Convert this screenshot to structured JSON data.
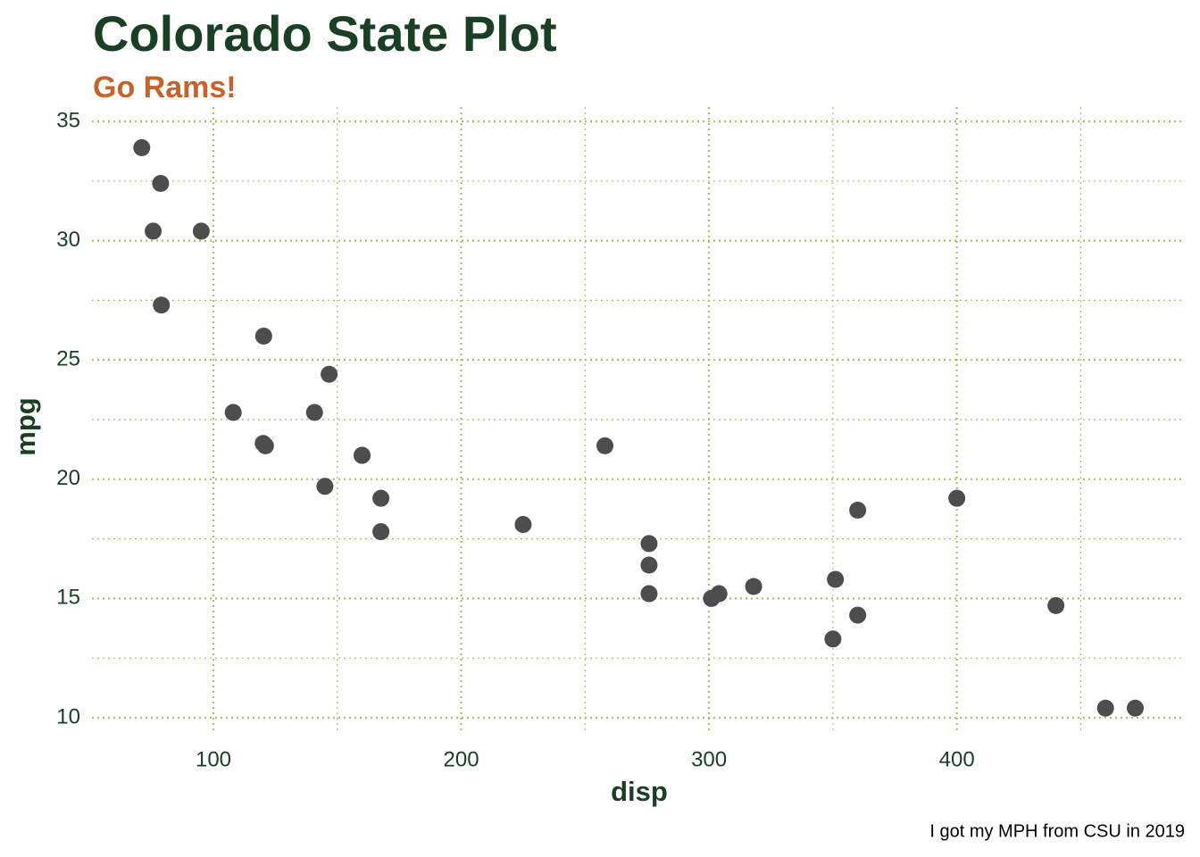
{
  "chart_data": {
    "type": "scatter",
    "title": "Colorado State Plot",
    "subtitle": "Go Rams!",
    "caption": "I got my MPH from CSU in 2019",
    "x_label": "disp",
    "y_label": "mpg",
    "x": [
      160,
      160,
      108,
      258,
      360,
      225,
      360,
      146.7,
      140.8,
      167.6,
      167.6,
      275.8,
      275.8,
      275.8,
      472,
      460,
      440,
      78.7,
      75.7,
      71.1,
      120.1,
      318,
      304,
      350,
      400,
      79,
      120.3,
      95.1,
      351,
      145,
      301,
      121
    ],
    "series": [
      {
        "color": "#4d4d4d",
        "values": [
          21.0,
          21.0,
          22.8,
          21.4,
          18.7,
          18.1,
          14.3,
          24.4,
          22.8,
          19.2,
          17.8,
          16.4,
          17.3,
          15.2,
          10.4,
          10.4,
          14.7,
          32.4,
          30.4,
          33.9,
          21.5,
          15.5,
          15.2,
          13.3,
          19.2,
          27.3,
          26.0,
          30.4,
          15.8,
          19.7,
          15.0,
          21.4
        ]
      }
    ],
    "xlim": [
      51,
      492
    ],
    "ylim": [
      9.4,
      35.6
    ],
    "xticks": [
      100,
      200,
      300,
      400
    ],
    "yticks": [
      10,
      15,
      20,
      25,
      30,
      35
    ],
    "xminor_ticks": [
      150,
      250,
      350,
      450
    ],
    "yminor_ticks": [
      12.5,
      17.5,
      22.5,
      27.5,
      32.5
    ],
    "grid": true,
    "grid_color": "#b8b865",
    "title_color": "#1b3f24",
    "subtitle_color": "#c8612b"
  }
}
